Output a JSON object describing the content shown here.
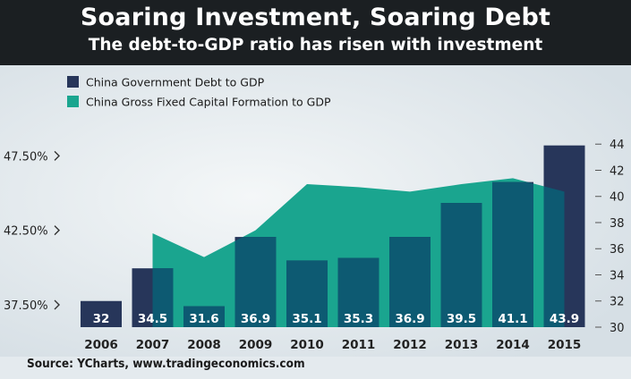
{
  "header": {
    "title": "Soaring Investment, Soaring Debt",
    "subtitle": "The debt-to-GDP ratio has risen with investment"
  },
  "source": "Source: YCharts, www.tradingeconomics.com",
  "colors": {
    "debt_bar": "#27365a",
    "investment_area": "#1aa58f",
    "overlap": "#0d5a72",
    "background": "#e4eaee",
    "header": "#1b1f22"
  },
  "chart_data": {
    "type": "bar",
    "categories": [
      "2006",
      "2007",
      "2008",
      "2009",
      "2010",
      "2011",
      "2012",
      "2013",
      "2014",
      "2015"
    ],
    "series": [
      {
        "name": "China Government Debt to GDP",
        "type": "bar",
        "axis": "right",
        "values": [
          32,
          34.5,
          31.6,
          36.9,
          35.1,
          35.3,
          36.9,
          39.5,
          41.1,
          43.9
        ],
        "value_labels": [
          "32",
          "34.5",
          "31.6",
          "36.9",
          "35.1",
          "35.3",
          "36.9",
          "39.5",
          "41.1",
          "43.9"
        ]
      },
      {
        "name": "China Gross Fixed Capital Formation to GDP",
        "type": "area",
        "axis": "left",
        "values": [
          null,
          42.3,
          40.7,
          42.5,
          45.6,
          45.4,
          45.1,
          45.6,
          46.0,
          45.1
        ]
      }
    ],
    "left_axis": {
      "ticks": [
        37.5,
        42.5,
        47.5
      ],
      "tick_labels": [
        "37.50%",
        "42.50%",
        "47.50%"
      ],
      "range": [
        36.0,
        48.9
      ]
    },
    "right_axis": {
      "ticks": [
        30,
        32,
        34,
        36,
        38,
        40,
        42,
        44
      ],
      "tick_labels": [
        "30",
        "32",
        "34",
        "36",
        "38",
        "40",
        "42",
        "44"
      ],
      "range": [
        30,
        44.7
      ]
    },
    "legend_position": "top-left",
    "grid": false
  }
}
